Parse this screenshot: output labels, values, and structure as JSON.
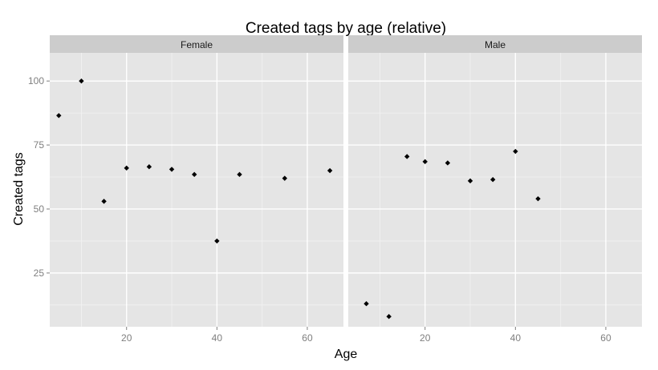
{
  "chart_data": {
    "type": "scatter",
    "title": "Created tags by age (relative)",
    "xlabel": "Age",
    "ylabel": "Created tags",
    "xlim": [
      3,
      68
    ],
    "ylim": [
      4,
      111
    ],
    "x_ticks": [
      20,
      40,
      60
    ],
    "y_ticks": [
      25,
      50,
      75,
      100
    ],
    "grid": true,
    "legend": "none",
    "colors": {
      "panel_bg": "#e5e5e5",
      "strip_bg": "#cccccc",
      "grid_major": "#ffffff",
      "grid_minor": "#f2f2f2",
      "point": "#000000"
    },
    "facets": [
      {
        "label": "Female",
        "points": [
          {
            "x": 5,
            "y": 86.5
          },
          {
            "x": 10,
            "y": 100
          },
          {
            "x": 15,
            "y": 53
          },
          {
            "x": 20,
            "y": 66
          },
          {
            "x": 25,
            "y": 66.5
          },
          {
            "x": 30,
            "y": 65.5
          },
          {
            "x": 35,
            "y": 63.5
          },
          {
            "x": 40,
            "y": 37.5
          },
          {
            "x": 45,
            "y": 63.5
          },
          {
            "x": 55,
            "y": 62
          },
          {
            "x": 65,
            "y": 65
          }
        ]
      },
      {
        "label": "Male",
        "points": [
          {
            "x": 7,
            "y": 13
          },
          {
            "x": 12,
            "y": 8
          },
          {
            "x": 16,
            "y": 70.5
          },
          {
            "x": 20,
            "y": 68.5
          },
          {
            "x": 25,
            "y": 68
          },
          {
            "x": 30,
            "y": 61
          },
          {
            "x": 35,
            "y": 61.5
          },
          {
            "x": 40,
            "y": 72.5
          },
          {
            "x": 45,
            "y": 54
          }
        ]
      }
    ]
  }
}
